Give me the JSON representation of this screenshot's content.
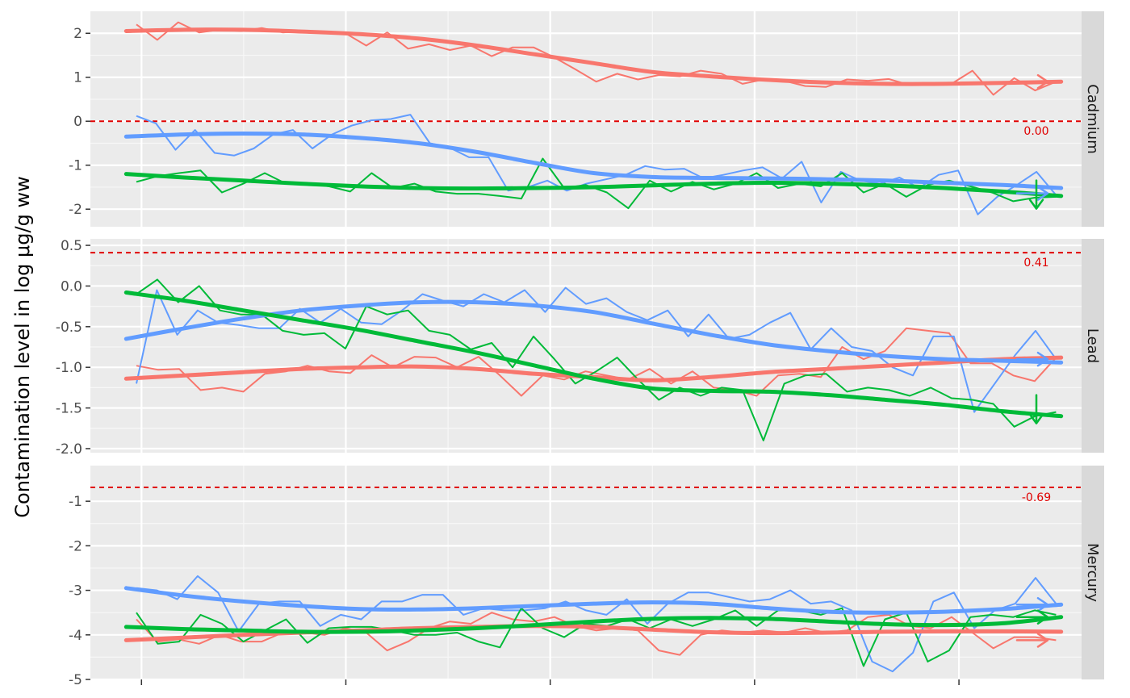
{
  "chart_data": {
    "type": "line",
    "ylabel": "Contamination level in log μg/g ww",
    "xlabel": "",
    "colors": {
      "red": "#F8766D",
      "green": "#00BA38",
      "blue": "#619CFF",
      "threshold": "#E00000"
    },
    "xlim": [
      0.5,
      10.2
    ],
    "x_ticks": [
      1,
      3,
      5,
      7,
      9
    ],
    "panels": [
      {
        "name": "Cadmium",
        "ylim": [
          -2.4,
          2.5
        ],
        "y_ticks": [
          -2,
          -1,
          0,
          1,
          2
        ],
        "y_tick_labels": [
          "-2",
          "-1",
          "0",
          "1",
          "2"
        ],
        "threshold": 0.0,
        "threshold_label": "0.00",
        "raw": {
          "red": [
            2.2,
            1.85,
            2.25,
            2.02,
            2.08,
            2.05,
            2.12,
            2.02,
            2.05,
            2.04,
            2.0,
            1.72,
            2.02,
            1.65,
            1.75,
            1.62,
            1.72,
            1.48,
            1.68,
            1.68,
            1.45,
            1.18,
            0.9,
            1.08,
            0.95,
            1.05,
            1.02,
            1.15,
            1.08,
            0.85,
            0.95,
            0.92,
            0.8,
            0.78,
            0.95,
            0.92,
            0.96,
            0.82,
            0.85,
            0.85,
            1.15,
            0.6,
            0.98,
            0.7,
            0.9
          ],
          "blue": [
            0.12,
            -0.05,
            -0.65,
            -0.2,
            -0.72,
            -0.78,
            -0.62,
            -0.3,
            -0.2,
            -0.62,
            -0.3,
            -0.1,
            0.02,
            0.05,
            0.15,
            -0.5,
            -0.6,
            -0.82,
            -0.82,
            -1.58,
            -1.5,
            -1.35,
            -1.58,
            -1.42,
            -1.32,
            -1.22,
            -1.02,
            -1.1,
            -1.08,
            -1.3,
            -1.22,
            -1.12,
            -1.05,
            -1.3,
            -0.92,
            -1.85,
            -1.15,
            -1.35,
            -1.42,
            -1.28,
            -1.52,
            -1.22,
            -1.12,
            -2.12,
            -1.72,
            -1.45,
            -1.15,
            -1.68
          ],
          "green": [
            -1.38,
            -1.25,
            -1.18,
            -1.12,
            -1.62,
            -1.42,
            -1.18,
            -1.42,
            -1.42,
            -1.48,
            -1.6,
            -1.18,
            -1.52,
            -1.42,
            -1.6,
            -1.65,
            -1.65,
            -1.7,
            -1.76,
            -0.85,
            -1.52,
            -1.45,
            -1.62,
            -1.98,
            -1.35,
            -1.6,
            -1.38,
            -1.55,
            -1.42,
            -1.18,
            -1.52,
            -1.42,
            -1.48,
            -1.18,
            -1.62,
            -1.42,
            -1.72,
            -1.45,
            -1.35,
            -1.48,
            -1.62,
            -1.82,
            -1.74,
            -1.72
          ]
        },
        "smooth": {
          "red": [
            2.05,
            2.08,
            2.08,
            2.04,
            1.98,
            1.88,
            1.72,
            1.52,
            1.32,
            1.12,
            1.02,
            0.94,
            0.88,
            0.85,
            0.85,
            0.87,
            0.9
          ],
          "blue": [
            -0.35,
            -0.3,
            -0.28,
            -0.3,
            -0.38,
            -0.5,
            -0.7,
            -0.95,
            -1.18,
            -1.27,
            -1.29,
            -1.3,
            -1.32,
            -1.35,
            -1.4,
            -1.45,
            -1.52
          ],
          "green": [
            -1.2,
            -1.28,
            -1.35,
            -1.42,
            -1.48,
            -1.52,
            -1.53,
            -1.52,
            -1.5,
            -1.46,
            -1.42,
            -1.4,
            -1.42,
            -1.46,
            -1.52,
            -1.6,
            -1.7
          ]
        },
        "trends": [
          {
            "color": "red",
            "direction": "right",
            "y": 0.9
          },
          {
            "color": "blue",
            "direction": "right",
            "y": -1.64
          },
          {
            "color": "green",
            "direction": "down",
            "y": -1.64
          }
        ]
      },
      {
        "name": "Lead",
        "ylim": [
          -2.05,
          0.58
        ],
        "y_ticks": [
          -2.0,
          -1.5,
          -1.0,
          -0.5,
          0.0,
          0.5
        ],
        "y_tick_labels": [
          "-2.0",
          "-1.5",
          "-1.0",
          "-0.5",
          "0.0",
          "0.5"
        ],
        "threshold": 0.41,
        "threshold_label": "0.41",
        "raw": {
          "red": [
            -0.98,
            -1.03,
            -1.02,
            -1.28,
            -1.25,
            -1.3,
            -1.08,
            -1.05,
            -0.98,
            -1.05,
            -1.07,
            -0.85,
            -1.0,
            -0.87,
            -0.88,
            -1.0,
            -0.87,
            -1.1,
            -1.35,
            -1.1,
            -1.15,
            -1.05,
            -1.1,
            -1.15,
            -1.02,
            -1.2,
            -1.05,
            -1.25,
            -1.28,
            -1.35,
            -1.1,
            -1.08,
            -1.12,
            -0.75,
            -0.9,
            -0.8,
            -0.52,
            -0.55,
            -0.58,
            -0.95,
            -0.95,
            -1.1,
            -1.17,
            -0.88
          ],
          "blue": [
            -1.2,
            -0.05,
            -0.6,
            -0.3,
            -0.45,
            -0.48,
            -0.52,
            -0.52,
            -0.28,
            -0.45,
            -0.28,
            -0.45,
            -0.47,
            -0.3,
            -0.1,
            -0.18,
            -0.25,
            -0.1,
            -0.2,
            -0.05,
            -0.32,
            -0.02,
            -0.22,
            -0.15,
            -0.32,
            -0.42,
            -0.3,
            -0.62,
            -0.35,
            -0.65,
            -0.6,
            -0.45,
            -0.33,
            -0.78,
            -0.52,
            -0.75,
            -0.8,
            -1.0,
            -1.1,
            -0.62,
            -0.62,
            -1.55,
            -1.2,
            -0.85,
            -0.55,
            -0.9
          ],
          "green": [
            -0.1,
            0.08,
            -0.2,
            0.0,
            -0.3,
            -0.35,
            -0.35,
            -0.55,
            -0.6,
            -0.58,
            -0.77,
            -0.25,
            -0.35,
            -0.3,
            -0.55,
            -0.6,
            -0.78,
            -0.7,
            -1.0,
            -0.62,
            -0.9,
            -1.2,
            -1.05,
            -0.88,
            -1.15,
            -1.4,
            -1.25,
            -1.35,
            -1.25,
            -1.28,
            -1.9,
            -1.2,
            -1.1,
            -1.08,
            -1.3,
            -1.25,
            -1.28,
            -1.35,
            -1.25,
            -1.38,
            -1.4,
            -1.45,
            -1.73,
            -1.6,
            -1.55
          ]
        },
        "smooth": {
          "red": [
            -1.14,
            -1.1,
            -1.06,
            -1.02,
            -1.0,
            -0.99,
            -1.02,
            -1.08,
            -1.12,
            -1.16,
            -1.12,
            -1.06,
            -1.02,
            -0.98,
            -0.94,
            -0.9,
            -0.88
          ],
          "blue": [
            -0.65,
            -0.52,
            -0.4,
            -0.3,
            -0.24,
            -0.2,
            -0.2,
            -0.24,
            -0.32,
            -0.46,
            -0.6,
            -0.72,
            -0.8,
            -0.86,
            -0.9,
            -0.92,
            -0.94
          ],
          "green": [
            -0.08,
            -0.18,
            -0.3,
            -0.42,
            -0.54,
            -0.68,
            -0.82,
            -0.98,
            -1.14,
            -1.26,
            -1.29,
            -1.3,
            -1.34,
            -1.4,
            -1.46,
            -1.54,
            -1.6
          ]
        },
        "trends": [
          {
            "color": "blue",
            "direction": "right",
            "y": -0.9
          },
          {
            "color": "green",
            "direction": "down",
            "y": -1.5
          }
        ]
      },
      {
        "name": "Mercury",
        "ylim": [
          -5.0,
          -0.2
        ],
        "y_ticks": [
          -5,
          -4,
          -3,
          -2,
          -1
        ],
        "y_tick_labels": [
          "-5",
          "-4",
          "-3",
          "-2",
          "-1"
        ],
        "threshold": -0.69,
        "threshold_label": "-0.69",
        "raw": {
          "red": [
            -3.65,
            -4.15,
            -4.1,
            -4.2,
            -4.0,
            -4.15,
            -4.15,
            -3.95,
            -3.95,
            -4.0,
            -3.85,
            -3.95,
            -4.35,
            -4.15,
            -3.85,
            -3.7,
            -3.75,
            -3.5,
            -3.65,
            -3.7,
            -3.6,
            -3.8,
            -3.9,
            -3.85,
            -3.9,
            -4.35,
            -4.45,
            -4.0,
            -3.9,
            -3.95,
            -3.9,
            -3.95,
            -3.85,
            -3.95,
            -3.9,
            -3.6,
            -3.55,
            -3.8,
            -3.85,
            -3.6,
            -3.95,
            -4.3,
            -4.05,
            -4.05,
            -4.12
          ],
          "blue": [
            -2.95,
            -3.0,
            -3.2,
            -2.68,
            -3.05,
            -3.92,
            -3.3,
            -3.25,
            -3.25,
            -3.8,
            -3.55,
            -3.65,
            -3.25,
            -3.25,
            -3.1,
            -3.1,
            -3.55,
            -3.4,
            -3.45,
            -3.45,
            -3.4,
            -3.25,
            -3.45,
            -3.55,
            -3.2,
            -3.75,
            -3.3,
            -3.05,
            -3.05,
            -3.15,
            -3.25,
            -3.2,
            -3.0,
            -3.3,
            -3.25,
            -3.45,
            -4.6,
            -4.82,
            -4.4,
            -3.25,
            -3.05,
            -3.85,
            -3.45,
            -3.3,
            -2.72,
            -3.3
          ],
          "green": [
            -3.5,
            -4.2,
            -4.15,
            -3.55,
            -3.75,
            -4.15,
            -3.9,
            -3.65,
            -4.18,
            -3.85,
            -3.82,
            -3.82,
            -3.9,
            -4.0,
            -4.0,
            -3.95,
            -4.15,
            -4.28,
            -3.4,
            -3.85,
            -4.05,
            -3.75,
            -3.8,
            -3.65,
            -3.85,
            -3.65,
            -3.8,
            -3.65,
            -3.45,
            -3.8,
            -3.45,
            -3.45,
            -3.55,
            -3.4,
            -4.7,
            -3.65,
            -3.5,
            -4.6,
            -4.35,
            -3.6,
            -3.55,
            -3.6,
            -3.45,
            -3.55
          ]
        },
        "smooth": {
          "red": [
            -4.12,
            -4.06,
            -4.0,
            -3.95,
            -3.9,
            -3.85,
            -3.82,
            -3.8,
            -3.82,
            -3.88,
            -3.94,
            -3.96,
            -3.95,
            -3.93,
            -3.92,
            -3.92,
            -3.93
          ],
          "blue": [
            -2.95,
            -3.12,
            -3.25,
            -3.35,
            -3.42,
            -3.43,
            -3.4,
            -3.35,
            -3.3,
            -3.27,
            -3.3,
            -3.4,
            -3.48,
            -3.5,
            -3.48,
            -3.42,
            -3.32
          ],
          "green": [
            -3.82,
            -3.87,
            -3.9,
            -3.93,
            -3.93,
            -3.9,
            -3.85,
            -3.78,
            -3.7,
            -3.64,
            -3.62,
            -3.64,
            -3.7,
            -3.76,
            -3.78,
            -3.74,
            -3.6
          ]
        },
        "trends": [
          {
            "color": "blue",
            "direction": "right",
            "y": -3.32
          },
          {
            "color": "green",
            "direction": "right",
            "y": -3.6
          },
          {
            "color": "red",
            "direction": "right",
            "y": -4.12
          }
        ]
      }
    ]
  }
}
